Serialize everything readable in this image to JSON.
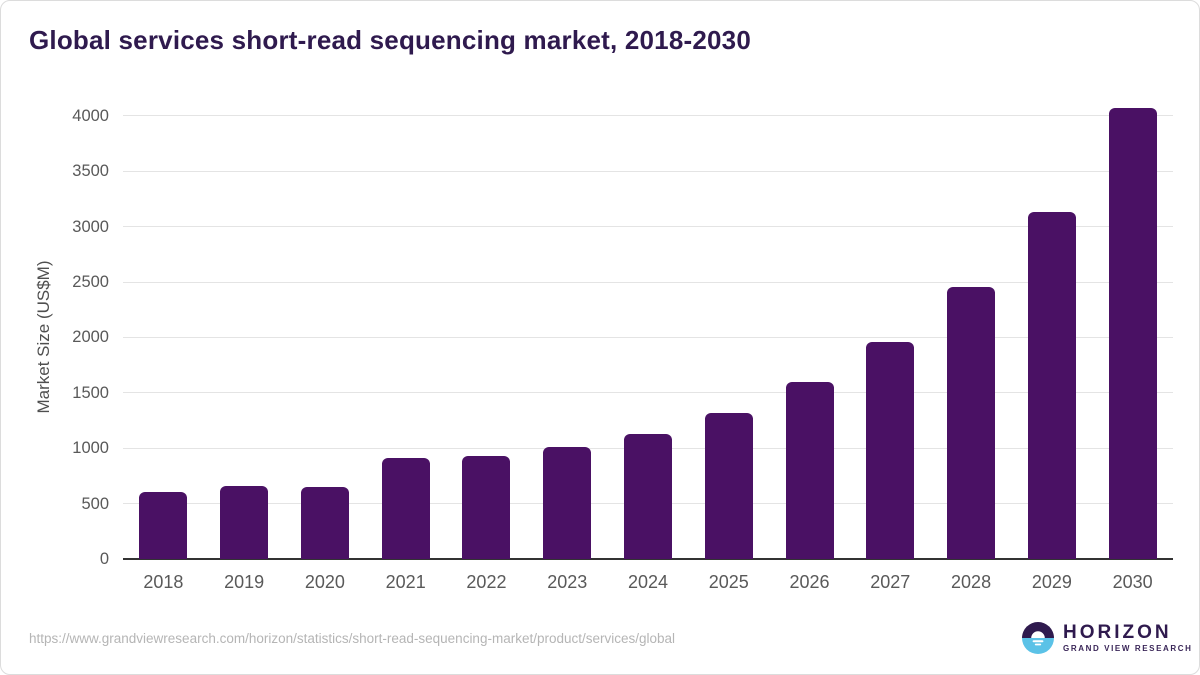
{
  "title": "Global services short-read sequencing market, 2018-2030",
  "source_url": "https://www.grandviewresearch.com/horizon/statistics/short-read-sequencing-market/product/services/global",
  "logo": {
    "brand": "HORIZON",
    "subbrand": "GRAND VIEW RESEARCH",
    "icon": "horizon-sun-circle"
  },
  "colors": {
    "bar-color": "#4A1164",
    "title-color": "#2F1A4E",
    "tick-color": "#595959",
    "ylabel-color": "#4F4F4F",
    "grid-color": "#E4E4E4",
    "axis-color": "#333333",
    "url-color": "#B5B5B5",
    "logo-blue": "#5BC2E7",
    "logo-purple": "#2F1A4E"
  },
  "chart_data": {
    "type": "bar",
    "title": "Global services short-read sequencing market, 2018-2030",
    "xlabel": "",
    "ylabel": "Market Size (US$M)",
    "categories": [
      "2018",
      "2019",
      "2020",
      "2021",
      "2022",
      "2023",
      "2024",
      "2025",
      "2026",
      "2027",
      "2028",
      "2029",
      "2030"
    ],
    "values": [
      605,
      663,
      651,
      912,
      934,
      1009,
      1130,
      1322,
      1597,
      1956,
      2452,
      3133,
      4068
    ],
    "ylim": [
      0,
      4000
    ],
    "ytick_step": 500,
    "grid": true,
    "legend": false,
    "bar_color": "#4A1164"
  }
}
